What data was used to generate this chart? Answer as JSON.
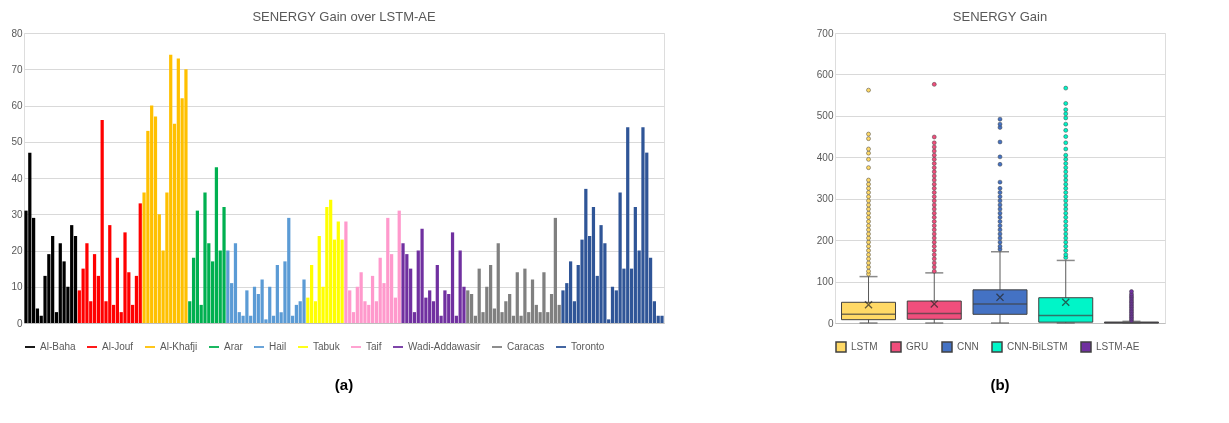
{
  "chart_data": [
    {
      "type": "bar",
      "title": "SENERGY Gain over LSTM-AE",
      "annotations": [
        "(a)"
      ],
      "ylim": [
        0,
        80
      ],
      "yticks": [
        0,
        10,
        20,
        30,
        40,
        50,
        60,
        70,
        80
      ],
      "grid": "y",
      "legend": "bottom",
      "tick_labels": "y",
      "categories": [
        null,
        null,
        null,
        null,
        null,
        null,
        null,
        null,
        null,
        null,
        null,
        null,
        null,
        null,
        null,
        null,
        null,
        null,
        null,
        null,
        null,
        null,
        null,
        null,
        null,
        null,
        null,
        null,
        null,
        null,
        null,
        null,
        null,
        null,
        null,
        null,
        null,
        null,
        null,
        null,
        null,
        null,
        null,
        null,
        null,
        null,
        null,
        null,
        null,
        null,
        null,
        null,
        null,
        null,
        null,
        null,
        null,
        null,
        null,
        null,
        null,
        null,
        null,
        null,
        null,
        null,
        null,
        null,
        null,
        null,
        null,
        null,
        null,
        null,
        null,
        null,
        null,
        null,
        null,
        null,
        null,
        null,
        null,
        null,
        null,
        null,
        null,
        null,
        null,
        null,
        null,
        null,
        null,
        null,
        null,
        null,
        null,
        null,
        null,
        null,
        null,
        null,
        null,
        null,
        null,
        null,
        null,
        null,
        null,
        null,
        null,
        null,
        null,
        null,
        null,
        null,
        null,
        null,
        null,
        null,
        null,
        null,
        null,
        null,
        null,
        null,
        null,
        null,
        null,
        null,
        null,
        null,
        null,
        null,
        null,
        null,
        null,
        null,
        null,
        null,
        null,
        null,
        null,
        null,
        null,
        null,
        null,
        null,
        null,
        null,
        null,
        null,
        null,
        null,
        null,
        null,
        null,
        null,
        null,
        null,
        null,
        null,
        null,
        null,
        null,
        null,
        null,
        null
      ],
      "series": [
        {
          "name": "Al-Baha",
          "color": "#000000",
          "values": [
            31,
            47,
            29,
            4,
            2,
            13,
            19,
            24,
            3,
            22,
            17,
            10,
            27,
            24,
            null,
            null,
            null,
            null,
            null,
            null,
            null,
            null,
            null,
            null,
            null,
            null,
            null,
            null,
            null,
            null,
            null,
            null,
            null,
            null,
            null,
            null,
            null,
            null,
            null,
            null,
            null,
            null,
            null,
            null,
            null,
            null,
            null,
            null,
            null,
            null,
            null,
            null,
            null,
            null,
            null,
            null,
            null,
            null,
            null,
            null,
            null,
            null,
            null,
            null,
            null,
            null,
            null,
            null,
            null,
            null,
            null,
            null,
            null,
            null,
            null,
            null,
            null,
            null,
            null,
            null,
            null,
            null,
            null,
            null,
            null,
            null,
            null,
            null,
            null,
            null,
            null,
            null,
            null,
            null,
            null,
            null,
            null,
            null,
            null,
            null,
            null,
            null,
            null,
            null,
            null,
            null,
            null,
            null,
            null,
            null,
            null,
            null,
            null,
            null,
            null,
            null,
            null,
            null,
            null,
            null,
            null,
            null,
            null,
            null,
            null,
            null,
            null,
            null,
            null,
            null,
            null,
            null,
            null,
            null,
            null,
            null,
            null,
            null,
            null,
            null,
            null,
            null,
            null,
            null,
            null,
            null,
            null,
            null,
            null,
            null,
            null,
            null,
            null,
            null,
            null,
            null,
            null,
            null,
            null,
            null,
            null,
            null,
            null,
            null,
            null,
            null,
            null,
            null
          ]
        },
        {
          "name": "Al-Jouf",
          "color": "#ff0000",
          "values": [
            null,
            null,
            null,
            null,
            null,
            null,
            null,
            null,
            null,
            null,
            null,
            null,
            null,
            null,
            9,
            15,
            22,
            6,
            19,
            13,
            56,
            6,
            27,
            5,
            18,
            3,
            25,
            14,
            5,
            13,
            33,
            null,
            null,
            null,
            null,
            null,
            null,
            null,
            null,
            null,
            null,
            null,
            null,
            null,
            null,
            null,
            null,
            null,
            null,
            null,
            null,
            null,
            null,
            null,
            null,
            null,
            null,
            null,
            null,
            null,
            null,
            null,
            null,
            null,
            null,
            null,
            null,
            null,
            null,
            null,
            null,
            null,
            null,
            null,
            null,
            null,
            null,
            null,
            null,
            null,
            null,
            null,
            null,
            null,
            null,
            null,
            null,
            null,
            null,
            null,
            null,
            null,
            null,
            null,
            null,
            null,
            null,
            null,
            null,
            null,
            null,
            null,
            null,
            null,
            null,
            null,
            null,
            null,
            null,
            null,
            null,
            null,
            null,
            null,
            null,
            null,
            null,
            null,
            null,
            null,
            null,
            null,
            null,
            null,
            null,
            null,
            null,
            null,
            null,
            null,
            null,
            null,
            null,
            null,
            null,
            null,
            null,
            null,
            null,
            null,
            null,
            null,
            null,
            null,
            null,
            null,
            null,
            null,
            null,
            null,
            null,
            null,
            null,
            null,
            null,
            null,
            null,
            null,
            null,
            null,
            null,
            null,
            null,
            null,
            null,
            null,
            null,
            null
          ]
        },
        {
          "name": "Al-Khafji",
          "color": "#ffc000",
          "values": [
            null,
            null,
            null,
            null,
            null,
            null,
            null,
            null,
            null,
            null,
            null,
            null,
            null,
            null,
            null,
            null,
            null,
            null,
            null,
            null,
            null,
            null,
            null,
            null,
            null,
            null,
            null,
            null,
            null,
            null,
            null,
            36,
            53,
            60,
            57,
            30,
            20,
            36,
            74,
            55,
            73,
            62,
            70,
            null,
            null,
            null,
            null,
            null,
            null,
            null,
            null,
            null,
            null,
            null,
            null,
            null,
            null,
            null,
            null,
            null,
            null,
            null,
            null,
            null,
            null,
            null,
            null,
            null,
            null,
            null,
            null,
            null,
            null,
            null,
            null,
            null,
            null,
            null,
            null,
            null,
            null,
            null,
            null,
            null,
            null,
            null,
            null,
            null,
            null,
            null,
            null,
            null,
            null,
            null,
            null,
            null,
            null,
            null,
            null,
            null,
            null,
            null,
            null,
            null,
            null,
            null,
            null,
            null,
            null,
            null,
            null,
            null,
            null,
            null,
            null,
            null,
            null,
            null,
            null,
            null,
            null,
            null,
            null,
            null,
            null,
            null,
            null,
            null,
            null,
            null,
            null,
            null,
            null,
            null,
            null,
            null,
            null,
            null,
            null,
            null,
            null,
            null,
            null,
            null,
            null,
            null,
            null,
            null,
            null,
            null,
            null,
            null,
            null,
            null,
            null,
            null,
            null,
            null,
            null,
            null,
            null,
            null,
            null,
            null,
            null,
            null,
            null,
            null
          ]
        },
        {
          "name": "Arar",
          "color": "#00b050",
          "values": [
            null,
            null,
            null,
            null,
            null,
            null,
            null,
            null,
            null,
            null,
            null,
            null,
            null,
            null,
            null,
            null,
            null,
            null,
            null,
            null,
            null,
            null,
            null,
            null,
            null,
            null,
            null,
            null,
            null,
            null,
            null,
            null,
            null,
            null,
            null,
            null,
            null,
            null,
            null,
            null,
            null,
            null,
            null,
            6,
            18,
            31,
            5,
            36,
            22,
            17,
            43,
            20,
            32,
            null,
            null,
            null,
            null,
            null,
            null,
            null,
            null,
            null,
            null,
            null,
            null,
            null,
            null,
            null,
            null,
            null,
            null,
            null,
            null,
            null,
            null,
            null,
            null,
            null,
            null,
            null,
            null,
            null,
            null,
            null,
            null,
            null,
            null,
            null,
            null,
            null,
            null,
            null,
            null,
            null,
            null,
            null,
            null,
            null,
            null,
            null,
            null,
            null,
            null,
            null,
            null,
            null,
            null,
            null,
            null,
            null,
            null,
            null,
            null,
            null,
            null,
            null,
            null,
            null,
            null,
            null,
            null,
            null,
            null,
            null,
            null,
            null,
            null,
            null,
            null,
            null,
            null,
            null,
            null,
            null,
            null,
            null,
            null,
            null,
            null,
            null,
            null,
            null,
            null,
            null,
            null,
            null,
            null,
            null,
            null,
            null,
            null,
            null,
            null,
            null,
            null,
            null,
            null,
            null,
            null,
            null,
            null,
            null,
            null,
            null,
            null,
            null,
            null,
            null
          ]
        },
        {
          "name": "Hail",
          "color": "#5b9bd5",
          "values": [
            null,
            null,
            null,
            null,
            null,
            null,
            null,
            null,
            null,
            null,
            null,
            null,
            null,
            null,
            null,
            null,
            null,
            null,
            null,
            null,
            null,
            null,
            null,
            null,
            null,
            null,
            null,
            null,
            null,
            null,
            null,
            null,
            null,
            null,
            null,
            null,
            null,
            null,
            null,
            null,
            null,
            null,
            null,
            null,
            null,
            null,
            null,
            null,
            null,
            null,
            null,
            null,
            null,
            20,
            11,
            22,
            3,
            2,
            9,
            2,
            10,
            8,
            12,
            1,
            10,
            2,
            16,
            3,
            17,
            29,
            2,
            5,
            6,
            12,
            null,
            null,
            null,
            null,
            null,
            null,
            null,
            null,
            null,
            null,
            null,
            null,
            null,
            null,
            null,
            null,
            null,
            null,
            null,
            null,
            null,
            null,
            null,
            null,
            null,
            null,
            null,
            null,
            null,
            null,
            null,
            null,
            null,
            null,
            null,
            null,
            null,
            null,
            null,
            null,
            null,
            null,
            null,
            null,
            null,
            null,
            null,
            null,
            null,
            null,
            null,
            null,
            null,
            null,
            null,
            null,
            null,
            null,
            null,
            null,
            null,
            null,
            null,
            null,
            null,
            null,
            null,
            null,
            null,
            null,
            null,
            null,
            null,
            null,
            null,
            null,
            null,
            null,
            null,
            null,
            null,
            null,
            null,
            null,
            null,
            null,
            null,
            null,
            null,
            null,
            null,
            null,
            null,
            null
          ]
        },
        {
          "name": "Tabuk",
          "color": "#ffff00",
          "values": [
            null,
            null,
            null,
            null,
            null,
            null,
            null,
            null,
            null,
            null,
            null,
            null,
            null,
            null,
            null,
            null,
            null,
            null,
            null,
            null,
            null,
            null,
            null,
            null,
            null,
            null,
            null,
            null,
            null,
            null,
            null,
            null,
            null,
            null,
            null,
            null,
            null,
            null,
            null,
            null,
            null,
            null,
            null,
            null,
            null,
            null,
            null,
            null,
            null,
            null,
            null,
            null,
            null,
            null,
            null,
            null,
            null,
            null,
            null,
            null,
            null,
            null,
            null,
            null,
            null,
            null,
            null,
            null,
            null,
            null,
            null,
            null,
            null,
            null,
            7,
            16,
            6,
            24,
            10,
            32,
            34,
            23,
            28,
            23,
            null,
            null,
            null,
            null,
            null,
            null,
            null,
            null,
            null,
            null,
            null,
            null,
            null,
            null,
            null,
            null,
            null,
            null,
            null,
            null,
            null,
            null,
            null,
            null,
            null,
            null,
            null,
            null,
            null,
            null,
            null,
            null,
            null,
            null,
            null,
            null,
            null,
            null,
            null,
            null,
            null,
            null,
            null,
            null,
            null,
            null,
            null,
            null,
            null,
            null,
            null,
            null,
            null,
            null,
            null,
            null,
            null,
            null,
            null,
            null,
            null,
            null,
            null,
            null,
            null,
            null,
            null,
            null,
            null,
            null,
            null,
            null,
            null,
            null,
            null,
            null,
            null,
            null,
            null,
            null,
            null,
            null,
            null,
            null
          ]
        },
        {
          "name": "Taif",
          "color": "#ff99cc",
          "values": [
            null,
            null,
            null,
            null,
            null,
            null,
            null,
            null,
            null,
            null,
            null,
            null,
            null,
            null,
            null,
            null,
            null,
            null,
            null,
            null,
            null,
            null,
            null,
            null,
            null,
            null,
            null,
            null,
            null,
            null,
            null,
            null,
            null,
            null,
            null,
            null,
            null,
            null,
            null,
            null,
            null,
            null,
            null,
            null,
            null,
            null,
            null,
            null,
            null,
            null,
            null,
            null,
            null,
            null,
            null,
            null,
            null,
            null,
            null,
            null,
            null,
            null,
            null,
            null,
            null,
            null,
            null,
            null,
            null,
            null,
            null,
            null,
            null,
            null,
            null,
            null,
            null,
            null,
            null,
            null,
            null,
            null,
            null,
            null,
            28,
            9,
            3,
            10,
            14,
            6,
            5,
            13,
            6,
            18,
            11,
            29,
            19,
            7,
            31,
            null,
            null,
            null,
            null,
            null,
            null,
            null,
            null,
            null,
            null,
            null,
            null,
            null,
            null,
            null,
            null,
            null,
            null,
            null,
            null,
            null,
            null,
            null,
            null,
            null,
            null,
            null,
            null,
            null,
            null,
            null,
            null,
            null,
            null,
            null,
            null,
            null,
            null,
            null,
            null,
            null,
            null,
            null,
            null,
            null,
            null,
            null,
            null,
            null,
            null,
            null,
            null,
            null,
            null,
            null,
            null,
            null,
            null,
            null,
            null,
            null,
            null,
            null,
            null,
            null,
            null,
            null,
            null,
            null
          ]
        },
        {
          "name": "Wadi-Addawasir",
          "color": "#7030a0",
          "values": [
            null,
            null,
            null,
            null,
            null,
            null,
            null,
            null,
            null,
            null,
            null,
            null,
            null,
            null,
            null,
            null,
            null,
            null,
            null,
            null,
            null,
            null,
            null,
            null,
            null,
            null,
            null,
            null,
            null,
            null,
            null,
            null,
            null,
            null,
            null,
            null,
            null,
            null,
            null,
            null,
            null,
            null,
            null,
            null,
            null,
            null,
            null,
            null,
            null,
            null,
            null,
            null,
            null,
            null,
            null,
            null,
            null,
            null,
            null,
            null,
            null,
            null,
            null,
            null,
            null,
            null,
            null,
            null,
            null,
            null,
            null,
            null,
            null,
            null,
            null,
            null,
            null,
            null,
            null,
            null,
            null,
            null,
            null,
            null,
            null,
            null,
            null,
            null,
            null,
            null,
            null,
            null,
            null,
            null,
            null,
            null,
            null,
            null,
            null,
            22,
            19,
            15,
            3,
            20,
            26,
            7,
            9,
            6,
            16,
            2,
            9,
            8,
            25,
            2,
            20,
            10,
            null,
            null,
            null,
            null,
            null,
            null,
            null,
            null,
            null,
            null,
            null,
            null,
            null,
            null,
            null,
            null,
            null,
            null,
            null,
            null,
            null,
            null,
            null,
            null,
            null,
            null,
            null,
            null,
            null,
            null,
            null,
            null,
            null,
            null,
            null,
            null,
            null,
            null,
            null,
            null,
            null,
            null,
            null,
            null,
            null,
            null,
            null,
            null,
            null,
            null,
            null,
            null
          ]
        },
        {
          "name": "Caracas",
          "color": "#808080",
          "values": [
            null,
            null,
            null,
            null,
            null,
            null,
            null,
            null,
            null,
            null,
            null,
            null,
            null,
            null,
            null,
            null,
            null,
            null,
            null,
            null,
            null,
            null,
            null,
            null,
            null,
            null,
            null,
            null,
            null,
            null,
            null,
            null,
            null,
            null,
            null,
            null,
            null,
            null,
            null,
            null,
            null,
            null,
            null,
            null,
            null,
            null,
            null,
            null,
            null,
            null,
            null,
            null,
            null,
            null,
            null,
            null,
            null,
            null,
            null,
            null,
            null,
            null,
            null,
            null,
            null,
            null,
            null,
            null,
            null,
            null,
            null,
            null,
            null,
            null,
            null,
            null,
            null,
            null,
            null,
            null,
            null,
            null,
            null,
            null,
            null,
            null,
            null,
            null,
            null,
            null,
            null,
            null,
            null,
            null,
            null,
            null,
            null,
            null,
            null,
            null,
            null,
            null,
            null,
            null,
            null,
            null,
            null,
            null,
            null,
            null,
            null,
            null,
            null,
            null,
            null,
            null,
            9,
            8,
            2,
            15,
            3,
            10,
            16,
            4,
            22,
            3,
            6,
            8,
            2,
            14,
            2,
            15,
            3,
            12,
            5,
            3,
            14,
            3,
            8,
            29,
            5,
            null,
            null,
            null,
            null,
            null,
            null,
            null,
            null,
            null,
            null,
            null,
            null,
            null,
            null,
            null,
            null,
            null,
            null,
            null,
            null,
            null,
            null,
            null,
            null,
            null,
            null,
            null
          ]
        },
        {
          "name": "Toronto",
          "color": "#2f5597",
          "values": [
            null,
            null,
            null,
            null,
            null,
            null,
            null,
            null,
            null,
            null,
            null,
            null,
            null,
            null,
            null,
            null,
            null,
            null,
            null,
            null,
            null,
            null,
            null,
            null,
            null,
            null,
            null,
            null,
            null,
            null,
            null,
            null,
            null,
            null,
            null,
            null,
            null,
            null,
            null,
            null,
            null,
            null,
            null,
            null,
            null,
            null,
            null,
            null,
            null,
            null,
            null,
            null,
            null,
            null,
            null,
            null,
            null,
            null,
            null,
            null,
            null,
            null,
            null,
            null,
            null,
            null,
            null,
            null,
            null,
            null,
            null,
            null,
            null,
            null,
            null,
            null,
            null,
            null,
            null,
            null,
            null,
            null,
            null,
            null,
            null,
            null,
            null,
            null,
            null,
            null,
            null,
            null,
            null,
            null,
            null,
            null,
            null,
            null,
            null,
            null,
            null,
            null,
            null,
            null,
            null,
            null,
            null,
            null,
            null,
            null,
            null,
            null,
            null,
            null,
            null,
            null,
            null,
            null,
            null,
            null,
            null,
            null,
            null,
            null,
            null,
            null,
            null,
            null,
            null,
            null,
            null,
            null,
            null,
            null,
            null,
            null,
            null,
            null,
            null,
            null,
            null,
            9,
            11,
            17,
            6,
            16,
            23,
            37,
            24,
            32,
            13,
            27,
            22,
            1,
            10,
            9,
            36,
            15,
            54,
            15,
            32,
            20,
            54,
            47,
            18,
            6,
            2,
            2
          ]
        }
      ]
    },
    {
      "type": "box",
      "title": "SENERGY Gain",
      "annotations": [
        "(b)"
      ],
      "ylim": [
        0,
        700
      ],
      "yticks": [
        0,
        100,
        200,
        300,
        400,
        500,
        600,
        700
      ],
      "grid": "y",
      "legend": "bottom",
      "tick_labels": "y",
      "categories": [
        null,
        null,
        null,
        null,
        null
      ],
      "series": [
        {
          "name": "LSTM",
          "color": "#ffd966",
          "boxes": [
            {
              "low": 0,
              "q1": 8,
              "median": 21,
              "q3": 50,
              "high": 112,
              "mean": 44,
              "outliers": [
                118,
                125,
                135,
                145,
                155,
                165,
                175,
                185,
                195,
                205,
                215,
                225,
                235,
                245,
                255,
                265,
                275,
                285,
                295,
                305,
                315,
                325,
                335,
                345,
                375,
                395,
                410,
                420,
                445,
                456,
                562
              ]
            },
            null,
            null,
            null,
            null
          ]
        },
        {
          "name": "GRU",
          "color": "#f04e7c",
          "boxes": [
            null,
            {
              "low": 0,
              "q1": 9,
              "median": 23,
              "q3": 53,
              "high": 121,
              "mean": 46,
              "outliers": [
                125,
                135,
                145,
                155,
                165,
                175,
                185,
                195,
                205,
                215,
                225,
                235,
                245,
                255,
                265,
                275,
                285,
                295,
                305,
                315,
                325,
                335,
                345,
                355,
                365,
                375,
                385,
                395,
                405,
                415,
                425,
                435,
                449,
                576
              ]
            },
            null,
            null,
            null
          ]
        },
        {
          "name": "CNN",
          "color": "#4472c4",
          "boxes": [
            null,
            null,
            {
              "low": 0,
              "q1": 21,
              "median": 46,
              "q3": 80,
              "high": 172,
              "mean": 62,
              "outliers": [
                178,
                185,
                195,
                205,
                215,
                225,
                235,
                245,
                255,
                265,
                275,
                285,
                295,
                305,
                315,
                325,
                340,
                383,
                401,
                437,
                472,
                480,
                492
              ]
            },
            null,
            null
          ]
        },
        {
          "name": "CNN-BiLSTM",
          "color": "#00f5c8",
          "boxes": [
            null,
            null,
            null,
            {
              "low": 0,
              "q1": 2,
              "median": 18,
              "q3": 61,
              "high": 151,
              "mean": 50,
              "outliers": [
                158,
                165,
                175,
                185,
                195,
                205,
                215,
                225,
                235,
                245,
                255,
                265,
                275,
                285,
                295,
                305,
                315,
                325,
                335,
                345,
                355,
                365,
                375,
                385,
                395,
                405,
                420,
                435,
                450,
                465,
                480,
                495,
                505,
                515,
                530,
                567
              ]
            },
            null
          ]
        },
        {
          "name": "LSTM-AE",
          "color": "#7030a0",
          "boxes": [
            null,
            null,
            null,
            null,
            {
              "low": 0,
              "q1": 0,
              "median": 1,
              "q3": 2,
              "high": 4,
              "outliers": [
                6,
                10,
                14,
                18,
                22,
                26,
                30,
                34,
                38,
                42,
                46,
                50,
                54,
                58,
                62,
                66,
                70,
                76
              ]
            }
          ]
        }
      ]
    }
  ]
}
